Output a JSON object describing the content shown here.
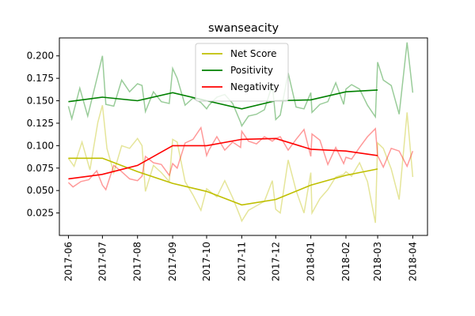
{
  "chart_data": {
    "type": "line",
    "title": "swanseacity",
    "xlabel": "",
    "ylabel": "",
    "x_ticks": [
      "2017-06",
      "2017-07",
      "2017-08",
      "2017-09",
      "2017-10",
      "2017-11",
      "2017-12",
      "2018-01",
      "2018-02",
      "2018-03",
      "2018-04"
    ],
    "y_ticks": [
      "0.025",
      "0.050",
      "0.075",
      "0.100",
      "0.125",
      "0.150",
      "0.175",
      "0.200"
    ],
    "xlim": [
      "2017-05-24",
      "2018-04-14"
    ],
    "ylim": [
      0.0,
      0.22
    ],
    "grid": false,
    "legend_position": "top-center",
    "legend": [
      {
        "name": "Net Score",
        "color": "#bfbf00"
      },
      {
        "name": "Positivity",
        "color": "#008000"
      },
      {
        "name": "Negativity",
        "color": "#ff0000"
      }
    ],
    "raw_series": [
      {
        "color": "#bfbf00",
        "x": [
          "2017-06-01",
          "2017-06-06",
          "2017-06-13",
          "2017-06-20",
          "2017-06-27",
          "2017-07-01",
          "2017-07-05",
          "2017-07-11",
          "2017-07-18",
          "2017-07-25",
          "2017-08-01",
          "2017-08-05",
          "2017-08-08",
          "2017-08-15",
          "2017-08-22",
          "2017-08-29",
          "2017-09-01",
          "2017-09-05",
          "2017-09-12",
          "2017-09-19",
          "2017-09-26",
          "2017-10-01",
          "2017-10-03",
          "2017-10-10",
          "2017-10-17",
          "2017-10-24",
          "2017-10-31",
          "2017-11-01",
          "2017-11-07",
          "2017-11-14",
          "2017-11-21",
          "2017-11-28",
          "2017-12-01",
          "2017-12-05",
          "2017-12-12",
          "2017-12-19",
          "2017-12-26",
          "2018-01-01",
          "2018-01-02",
          "2018-01-09",
          "2018-01-16",
          "2018-01-23",
          "2018-01-30",
          "2018-02-01",
          "2018-02-06",
          "2018-02-13",
          "2018-02-20",
          "2018-02-27",
          "2018-03-01",
          "2018-03-06",
          "2018-03-13",
          "2018-03-20",
          "2018-03-27",
          "2018-04-01"
        ],
        "y": [
          0.086,
          0.077,
          0.104,
          0.073,
          0.126,
          0.145,
          0.097,
          0.07,
          0.1,
          0.097,
          0.108,
          0.1,
          0.049,
          0.078,
          0.07,
          0.06,
          0.107,
          0.104,
          0.06,
          0.045,
          0.028,
          0.052,
          0.05,
          0.043,
          0.061,
          0.042,
          0.02,
          0.016,
          0.028,
          0.033,
          0.038,
          0.061,
          0.029,
          0.025,
          0.084,
          0.05,
          0.025,
          0.07,
          0.025,
          0.041,
          0.051,
          0.065,
          0.068,
          0.071,
          0.066,
          0.081,
          0.06,
          0.014,
          0.103,
          0.097,
          0.074,
          0.04,
          0.137,
          0.065
        ]
      },
      {
        "color": "#008000",
        "x": [
          "2017-06-01",
          "2017-06-04",
          "2017-06-11",
          "2017-06-18",
          "2017-06-25",
          "2017-07-01",
          "2017-07-04",
          "2017-07-11",
          "2017-07-18",
          "2017-07-25",
          "2017-08-01",
          "2017-08-05",
          "2017-08-08",
          "2017-08-15",
          "2017-08-22",
          "2017-08-29",
          "2017-09-01",
          "2017-09-05",
          "2017-09-12",
          "2017-09-19",
          "2017-09-26",
          "2017-10-01",
          "2017-10-03",
          "2017-10-10",
          "2017-10-17",
          "2017-10-24",
          "2017-10-31",
          "2017-11-01",
          "2017-11-07",
          "2017-11-14",
          "2017-11-21",
          "2017-11-28",
          "2017-12-01",
          "2017-12-05",
          "2017-12-12",
          "2017-12-19",
          "2017-12-26",
          "2018-01-01",
          "2018-01-02",
          "2018-01-09",
          "2018-01-16",
          "2018-01-23",
          "2018-01-30",
          "2018-02-01",
          "2018-02-06",
          "2018-02-13",
          "2018-02-20",
          "2018-02-27",
          "2018-03-01",
          "2018-03-06",
          "2018-03-13",
          "2018-03-20",
          "2018-03-27",
          "2018-04-01"
        ],
        "y": [
          0.144,
          0.13,
          0.164,
          0.133,
          0.169,
          0.2,
          0.146,
          0.144,
          0.173,
          0.16,
          0.169,
          0.167,
          0.138,
          0.16,
          0.149,
          0.147,
          0.186,
          0.175,
          0.145,
          0.153,
          0.148,
          0.141,
          0.145,
          0.154,
          0.157,
          0.147,
          0.126,
          0.122,
          0.133,
          0.135,
          0.14,
          0.168,
          0.129,
          0.134,
          0.181,
          0.143,
          0.141,
          0.159,
          0.137,
          0.146,
          0.149,
          0.17,
          0.146,
          0.163,
          0.168,
          0.163,
          0.145,
          0.132,
          0.193,
          0.173,
          0.167,
          0.135,
          0.215,
          0.159
        ]
      },
      {
        "color": "#ff0000",
        "x": [
          "2017-06-01",
          "2017-06-05",
          "2017-06-12",
          "2017-06-19",
          "2017-06-26",
          "2017-07-01",
          "2017-07-04",
          "2017-07-11",
          "2017-07-18",
          "2017-07-25",
          "2017-08-01",
          "2017-08-05",
          "2017-08-08",
          "2017-08-15",
          "2017-08-22",
          "2017-08-29",
          "2017-09-01",
          "2017-09-05",
          "2017-09-12",
          "2017-09-19",
          "2017-09-26",
          "2017-10-01",
          "2017-10-03",
          "2017-10-10",
          "2017-10-17",
          "2017-10-24",
          "2017-10-31",
          "2017-11-01",
          "2017-11-07",
          "2017-11-14",
          "2017-11-21",
          "2017-11-28",
          "2017-12-01",
          "2017-12-05",
          "2017-12-12",
          "2017-12-19",
          "2017-12-26",
          "2018-01-01",
          "2018-01-02",
          "2018-01-09",
          "2018-01-16",
          "2018-01-23",
          "2018-01-30",
          "2018-02-01",
          "2018-02-06",
          "2018-02-13",
          "2018-02-20",
          "2018-02-27",
          "2018-03-01",
          "2018-03-06",
          "2018-03-13",
          "2018-03-20",
          "2018-03-27",
          "2018-04-01"
        ],
        "y": [
          0.059,
          0.054,
          0.06,
          0.062,
          0.072,
          0.056,
          0.051,
          0.078,
          0.071,
          0.063,
          0.061,
          0.066,
          0.088,
          0.081,
          0.079,
          0.067,
          0.08,
          0.075,
          0.103,
          0.107,
          0.12,
          0.089,
          0.095,
          0.11,
          0.095,
          0.104,
          0.098,
          0.116,
          0.105,
          0.102,
          0.11,
          0.105,
          0.108,
          0.11,
          0.095,
          0.107,
          0.118,
          0.088,
          0.113,
          0.106,
          0.079,
          0.098,
          0.08,
          0.087,
          0.085,
          0.098,
          0.11,
          0.119,
          0.089,
          0.076,
          0.097,
          0.094,
          0.077,
          0.094
        ]
      }
    ],
    "series": [
      {
        "name": "Net Score",
        "color": "#bfbf00",
        "x": [
          "2017-06-01",
          "2017-07-01",
          "2017-08-01",
          "2017-09-01",
          "2017-10-01",
          "2017-11-01",
          "2017-12-01",
          "2018-01-01",
          "2018-02-01",
          "2018-03-01"
        ],
        "y": [
          0.086,
          0.086,
          0.071,
          0.058,
          0.049,
          0.034,
          0.04,
          0.056,
          0.067,
          0.074
        ]
      },
      {
        "name": "Positivity",
        "color": "#008000",
        "x": [
          "2017-06-01",
          "2017-07-01",
          "2017-08-01",
          "2017-09-01",
          "2017-10-01",
          "2017-11-01",
          "2017-12-01",
          "2018-01-01",
          "2018-02-01",
          "2018-03-01"
        ],
        "y": [
          0.149,
          0.154,
          0.15,
          0.159,
          0.15,
          0.141,
          0.15,
          0.151,
          0.16,
          0.162
        ]
      },
      {
        "name": "Negativity",
        "color": "#ff0000",
        "x": [
          "2017-06-01",
          "2017-07-01",
          "2017-08-01",
          "2017-09-01",
          "2017-10-01",
          "2017-11-01",
          "2017-12-01",
          "2018-01-01",
          "2018-02-01",
          "2018-03-01"
        ],
        "y": [
          0.063,
          0.068,
          0.078,
          0.1,
          0.1,
          0.107,
          0.108,
          0.096,
          0.094,
          0.089
        ]
      }
    ]
  }
}
